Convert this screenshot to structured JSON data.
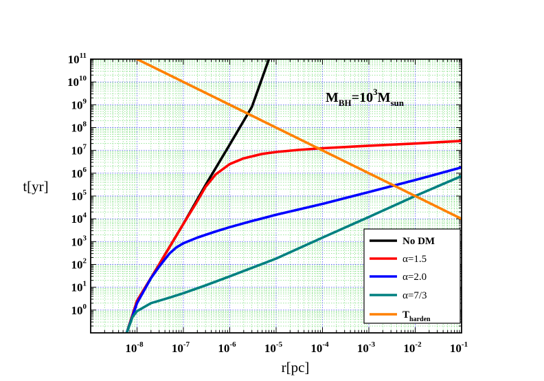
{
  "chart_data": {
    "type": "line",
    "xlabel": "r[pc]",
    "ylabel": "t[yr]",
    "xscale": "log",
    "yscale": "log",
    "xlim": [
      1e-09,
      0.1
    ],
    "ylim": [
      0.1,
      100000000000.0
    ],
    "grid": true,
    "legend_position": "bottom-right",
    "x_ticks": [
      {
        "base": "10",
        "exp": "-8"
      },
      {
        "base": "10",
        "exp": "-7"
      },
      {
        "base": "10",
        "exp": "-6"
      },
      {
        "base": "10",
        "exp": "-5"
      },
      {
        "base": "10",
        "exp": "-4"
      },
      {
        "base": "10",
        "exp": "-3"
      },
      {
        "base": "10",
        "exp": "-2"
      },
      {
        "base": "10",
        "exp": "-1"
      }
    ],
    "y_ticks": [
      {
        "base": "10",
        "exp": "0"
      },
      {
        "base": "10",
        "exp": "1"
      },
      {
        "base": "10",
        "exp": "2"
      },
      {
        "base": "10",
        "exp": "3"
      },
      {
        "base": "10",
        "exp": "4"
      },
      {
        "base": "10",
        "exp": "5"
      },
      {
        "base": "10",
        "exp": "6"
      },
      {
        "base": "10",
        "exp": "7"
      },
      {
        "base": "10",
        "exp": "8"
      },
      {
        "base": "10",
        "exp": "9"
      },
      {
        "base": "10",
        "exp": "10"
      },
      {
        "base": "10",
        "exp": "11"
      }
    ],
    "annotation": {
      "text": "M",
      "sub": "BH",
      "mid": "=10",
      "sup": "3",
      "text2": "M",
      "sub2": "sun"
    },
    "series": [
      {
        "name": "No DM",
        "name_bold": true,
        "color": "#000000",
        "x": [
          6e-09,
          1e-08,
          3e-08,
          1e-07,
          3e-07,
          1e-06,
          3e-06,
          7e-06
        ],
        "y": [
          0.1,
          2.5,
          100,
          6000,
          300000,
          18000000,
          800000000,
          100000000000
        ]
      },
      {
        "name": "α=1.5",
        "name_bold": false,
        "color": "#ff0000",
        "x": [
          6e-09,
          1e-08,
          3e-08,
          1e-07,
          2e-07,
          3e-07,
          5e-07,
          1e-06,
          2e-06,
          5e-06,
          1e-05,
          3e-05,
          0.0001,
          0.001,
          0.01,
          0.1
        ],
        "y": [
          0.1,
          2.5,
          100,
          6000,
          60000,
          250000,
          900000,
          2500000,
          4500000,
          7000000,
          8500000,
          10500000,
          12500000,
          16000000,
          20000000,
          26000000
        ]
      },
      {
        "name": "α=2.0",
        "name_bold": false,
        "color": "#0000ff",
        "x": [
          6e-09,
          1e-08,
          2e-08,
          3e-08,
          5e-08,
          7e-08,
          1e-07,
          2e-07,
          5e-07,
          1e-06,
          3e-06,
          1e-05,
          0.0001,
          0.001,
          0.01,
          0.1
        ],
        "y": [
          0.1,
          2,
          25,
          80,
          300,
          550,
          850,
          1500,
          2800,
          4300,
          8000,
          15000,
          45000,
          150000,
          500000,
          1800000
        ]
      },
      {
        "name": "α=7/3",
        "name_bold": false,
        "color": "#008080",
        "x": [
          6e-09,
          8e-09,
          1e-08,
          2e-08,
          5e-08,
          1e-07,
          3e-07,
          1e-06,
          1e-05,
          0.0001,
          0.001,
          0.01,
          0.1
        ],
        "y": [
          0.1,
          0.5,
          0.9,
          2,
          3.5,
          5.5,
          12,
          30,
          180,
          1500,
          12000,
          100000,
          750000
        ]
      },
      {
        "name": "T",
        "name_sub": "harden",
        "name_bold": true,
        "color": "#ff8000",
        "x": [
          1e-08,
          0.1
        ],
        "y": [
          100000000000,
          10000
        ]
      }
    ]
  }
}
